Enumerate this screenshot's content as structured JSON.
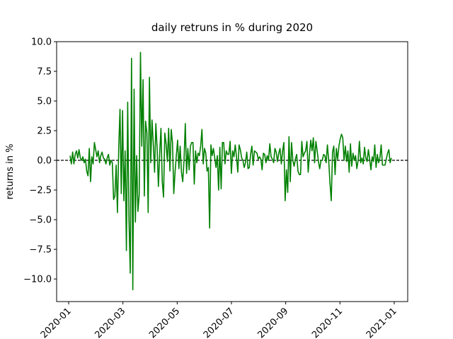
{
  "chart_data": {
    "type": "line",
    "title": "daily retruns in % during 2020",
    "ylabel": "returns in %",
    "color": "#008000",
    "hline": 0,
    "ylim": [
      -11.9,
      10.0
    ],
    "yticks": [
      {
        "value": 10.0,
        "label": "10.0"
      },
      {
        "value": 7.5,
        "label": "7.5"
      },
      {
        "value": 5.0,
        "label": "5.0"
      },
      {
        "value": 2.5,
        "label": "2.5"
      },
      {
        "value": 0.0,
        "label": "0.0"
      },
      {
        "value": -2.5,
        "label": "−2.5"
      },
      {
        "value": -5.0,
        "label": "−5.0"
      },
      {
        "value": -7.5,
        "label": "−7.5"
      },
      {
        "value": -10.0,
        "label": "−10.0"
      }
    ],
    "xticks": [
      "2020-01",
      "2020-03",
      "2020-05",
      "2020-07",
      "2020-09",
      "2020-11",
      "2021-01"
    ],
    "values": [
      0.4,
      -0.3,
      0.7,
      -0.3,
      0.5,
      0.8,
      0.2,
      0.9,
      0.2,
      0,
      0.3,
      -0.2,
      0.1,
      -0.9,
      -1.3,
      1.0,
      -1.8,
      0.3,
      -0.3,
      1.5,
      0.9,
      0.3,
      0.8,
      -0.2,
      0.4,
      0.7,
      0.2,
      0.1,
      -0.3,
      0.2,
      0.5,
      -0.4,
      0.0,
      -0.2,
      -3.3,
      -3.0,
      -0.4,
      -4.4,
      1.0,
      4.3,
      -2.8,
      4.2,
      -3.4,
      0.8,
      -7.6,
      4.9,
      -4.9,
      -9.5,
      8.6,
      -10.9,
      6.0,
      -5.2,
      0.4,
      -4.3,
      -2.9,
      9.1,
      1.2,
      6.8,
      -3.0,
      3.3,
      2.3,
      -4.4,
      7.0,
      -0.2,
      3.4,
      1.4,
      -1.0,
      3.1,
      1.0,
      -2.2,
      0.6,
      2.7,
      -1.8,
      -3.1,
      2.3,
      1.4,
      -0.1,
      2.7,
      -0.9,
      2.6,
      1.5,
      -2.8,
      -1.0,
      0.4,
      1.7,
      -0.7,
      1.2,
      -1.0,
      -1.8,
      0.0,
      3.1,
      -1.1,
      1.0,
      -0.8,
      1.2,
      1.5,
      1.5,
      -2.0,
      0.8,
      -0.2,
      0.6,
      0.4,
      1.2,
      2.6,
      -0.3,
      1.0,
      0.6,
      -0.9,
      -0.6,
      -5.7,
      1.3,
      0.4,
      1.0,
      0.2,
      -0.6,
      0.4,
      -2.5,
      1.1,
      -2.4,
      1.5,
      1.5,
      -0.3,
      0.8,
      0.5,
      0.5,
      1.6,
      -1.1,
      0.8,
      0.3,
      1.3,
      0.3,
      -1.0,
      1.3,
      0.9,
      0.2,
      0.0,
      -0.6,
      -0.2,
      0.7,
      -0.7,
      -0.6,
      0.5,
      1.2,
      -0.4,
      0.8,
      0.7,
      0.6,
      0.1,
      0.3,
      0.1,
      -0.8,
      0.6,
      0.5,
      -0.2,
      0.4,
      0.0,
      1.4,
      0.3,
      0.1,
      -0.2,
      1.0,
      0.7,
      -0.1,
      0.6,
      1.0,
      -0.3,
      0.8,
      1.5,
      -3.4,
      -0.8,
      -2.7,
      2.0,
      -1.8,
      1.5,
      0.0,
      -0.5,
      0.1,
      0.5,
      -0.9,
      -1.2,
      -1.2,
      1.6,
      0.3,
      0.6,
      0.8,
      1.6,
      -1.0,
      0.5,
      1.7,
      0.8,
      1.9,
      -0.2,
      1.6,
      0.8,
      -0.1,
      -0.7,
      0.0,
      0.0,
      0.5,
      0.4,
      -0.2,
      1.3,
      0.0,
      -1.9,
      -3.4,
      0.7,
      1.2,
      -1.2,
      1.0,
      0.1,
      1.2,
      1.8,
      2.2,
      1.9,
      0.0,
      1.2,
      -0.1,
      0.8,
      -1.0,
      1.4,
      -0.5,
      0.6,
      0.0,
      0.4,
      -0.7,
      0.0,
      1.6,
      -0.2,
      0.2,
      -0.3,
      1.1,
      0.2,
      -0.1,
      0.9,
      0.1,
      -0.8,
      0.3,
      -0.1,
      1.3,
      -0.6,
      0.5,
      -0.2,
      0.2,
      1.3,
      -0.4,
      -0.4,
      -0.4,
      0.1,
      0.6,
      0.9,
      -0.2,
      0.2
    ]
  }
}
